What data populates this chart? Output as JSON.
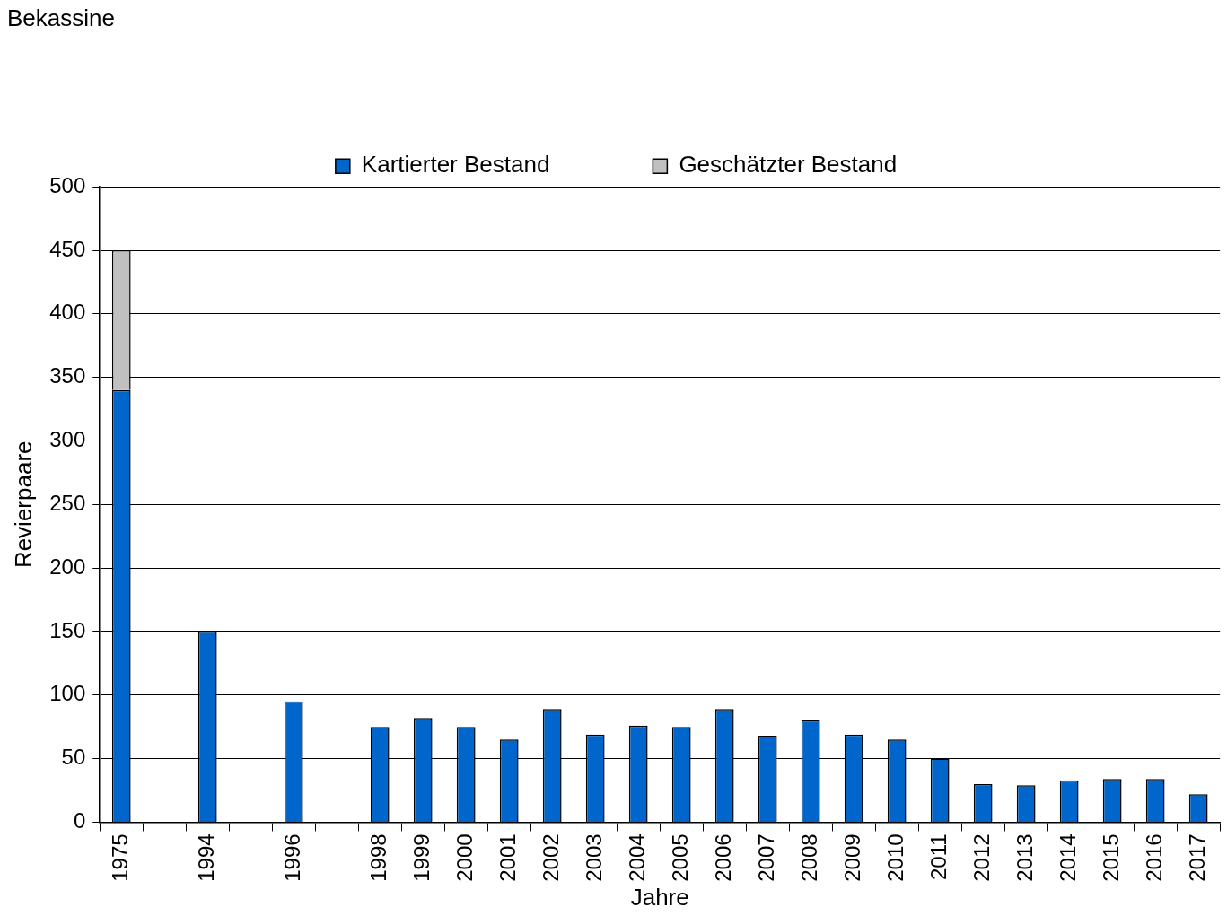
{
  "chart_data": {
    "type": "bar",
    "title": "Bekassine",
    "xlabel": "Jahre",
    "ylabel": "Revierpaare",
    "categories": [
      "1975",
      null,
      "1994",
      null,
      "1996",
      null,
      "1998",
      "1999",
      "2000",
      "2001",
      "2002",
      "2003",
      "2004",
      "2005",
      "2006",
      "2007",
      "2008",
      "2009",
      "2010",
      "2011",
      "2012",
      "2013",
      "2014",
      "2015",
      "2016",
      "2017"
    ],
    "stacked": true,
    "series": [
      {
        "name": "Kartierter Bestand",
        "color": "#0066cc",
        "values": [
          340,
          null,
          150,
          null,
          95,
          null,
          75,
          82,
          75,
          65,
          89,
          69,
          76,
          75,
          89,
          68,
          80,
          69,
          65,
          50,
          30,
          29,
          33,
          34,
          34,
          22
        ]
      },
      {
        "name": "Geschätzter Bestand",
        "color": "#c0c0c0",
        "values": [
          110,
          null,
          null,
          null,
          null,
          null,
          null,
          null,
          null,
          null,
          null,
          null,
          null,
          null,
          null,
          null,
          null,
          null,
          null,
          null,
          null,
          null,
          null,
          null,
          null,
          null
        ]
      }
    ],
    "ylim": [
      0,
      500
    ],
    "yticks": [
      0,
      50,
      100,
      150,
      200,
      250,
      300,
      350,
      400,
      450,
      500
    ],
    "grid": "y",
    "legend": "top"
  }
}
